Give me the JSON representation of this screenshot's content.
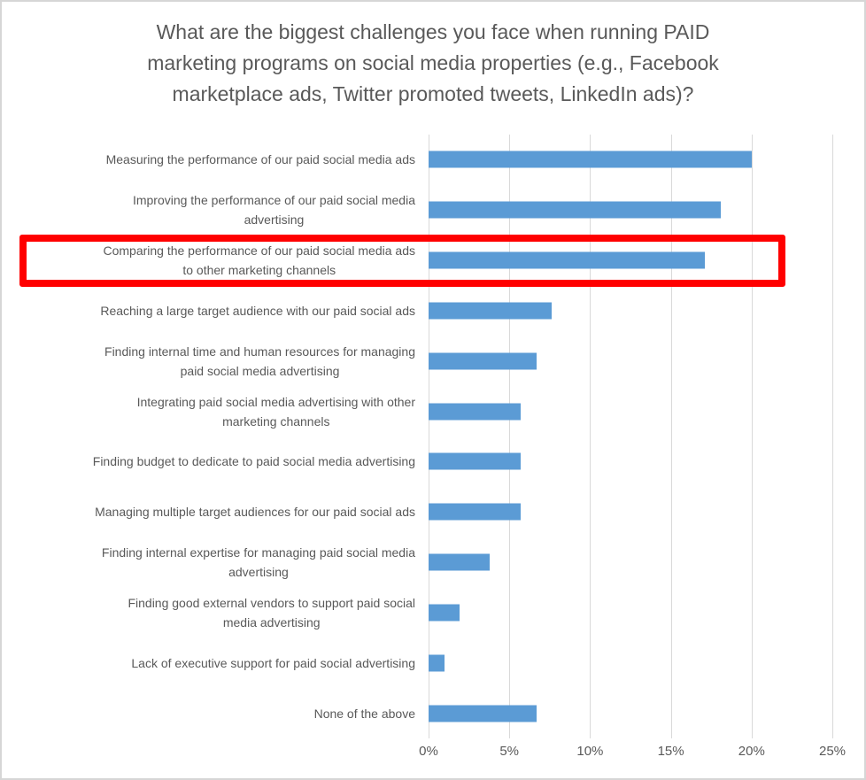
{
  "frame": {
    "background": "#ffffff",
    "border_color": "#d6d6d6"
  },
  "chart_data": {
    "type": "bar",
    "orientation": "horizontal",
    "title": "What are the biggest challenges you face when running PAID\nmarketing programs on social media properties (e.g., Facebook\nmarketplace ads, Twitter promoted tweets, LinkedIn ads)?",
    "categories": [
      "Measuring the performance of our paid social media ads",
      "Improving the performance of our paid social media\nadvertising",
      "Comparing the performance of our paid social media ads\nto other marketing channels",
      "Reaching a large target audience with our paid social ads",
      "Finding internal time and human resources for managing\npaid social media advertising",
      "Integrating paid social media advertising with other\nmarketing channels",
      "Finding budget to dedicate to paid social media advertising",
      "Managing multiple target audiences for our paid social ads",
      "Finding internal expertise for managing paid social media\nadvertising",
      "Finding good external vendors to support paid social\nmedia advertising",
      "Lack of executive support for paid social advertising",
      "None of the above"
    ],
    "values": [
      20.0,
      18.1,
      17.1,
      7.6,
      6.7,
      5.7,
      5.7,
      5.7,
      3.8,
      1.9,
      1.0,
      6.7
    ],
    "value_unit": "%",
    "xlabel": "",
    "ylabel": "",
    "x_ticks": [
      "0%",
      "5%",
      "10%",
      "15%",
      "20%",
      "25%"
    ],
    "xlim": [
      0,
      25
    ],
    "grid": true,
    "legend": false,
    "bar_color": "#5b9bd5",
    "grid_color": "#d9d9d9",
    "text_color": "#595959",
    "highlight": {
      "shape": "red-rectangle-annotation",
      "category_index": 2,
      "category": "Comparing the performance of our paid social media ads to other marketing channels",
      "color": "#ff0000"
    }
  }
}
